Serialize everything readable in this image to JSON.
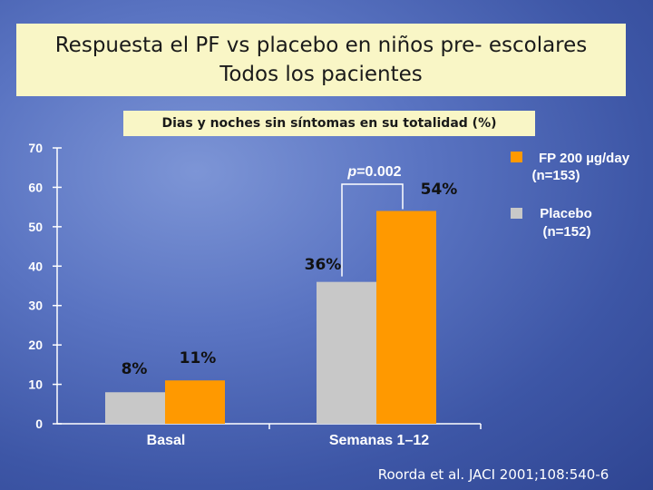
{
  "slide": {
    "title_line1": "Respuesta el PF vs placebo en niños pre- escolares",
    "title_line2": "Todos los pacientes",
    "citation": "Roorda et al. JACI 2001;108:540-6"
  },
  "chart_data": {
    "type": "bar",
    "title": "Dias y noches sin síntomas en su totalidad (%)",
    "categories": [
      "Basal",
      "Semanas 1–12"
    ],
    "series": [
      {
        "name": "Placebo (n=152)",
        "legend_lines": [
          "Placebo",
          "(n=152)"
        ],
        "values": [
          8,
          36
        ],
        "labels": [
          "8%",
          "36%"
        ],
        "color": "#c8c8c8"
      },
      {
        "name": "FP 200 µg/day (n=153)",
        "legend_lines": [
          "FP 200 µg/day",
          "(n=153)"
        ],
        "values": [
          11,
          54
        ],
        "labels": [
          "11%",
          "54%"
        ],
        "color": "#ff9900"
      }
    ],
    "ylim": [
      0,
      70
    ],
    "yticks": [
      0,
      10,
      20,
      30,
      40,
      50,
      60,
      70
    ],
    "annotation": {
      "text_italic": "p",
      "text_rest": "=0.002",
      "between": "Semanas 1–12"
    },
    "axis_color": "#ffffff",
    "legend_position": "top-right"
  }
}
